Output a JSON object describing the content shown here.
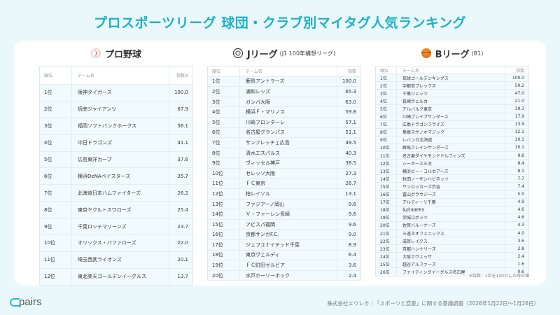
{
  "title": "プロスポーツリーグ 球団・クラブ別マイタグ人気ランキング",
  "columns": {
    "rank": "順位",
    "team": "チーム名",
    "index": "指数",
    "index_note": "指数※"
  },
  "baseball": {
    "heading": "プロ野球",
    "icon": "baseball-icon",
    "rows": [
      {
        "rank": "1位",
        "team": "阪神タイガース",
        "index": "100.0"
      },
      {
        "rank": "2位",
        "team": "読売ジャイアンツ",
        "index": "67.9"
      },
      {
        "rank": "3位",
        "team": "福岡ソフトバンクホークス",
        "index": "56.1"
      },
      {
        "rank": "4位",
        "team": "中日ドラゴンズ",
        "index": "41.1"
      },
      {
        "rank": "5位",
        "team": "広島東洋カープ",
        "index": "37.6"
      },
      {
        "rank": "6位",
        "team": "横浜DeNAベイスターズ",
        "index": "35.7"
      },
      {
        "rank": "7位",
        "team": "北海道日本ハムファイターズ",
        "index": "26.2"
      },
      {
        "rank": "8位",
        "team": "東京ヤクルトスワローズ",
        "index": "25.4"
      },
      {
        "rank": "9位",
        "team": "千葉ロッテマリーンズ",
        "index": "23.7"
      },
      {
        "rank": "10位",
        "team": "オリックス・バファローズ",
        "index": "22.0"
      },
      {
        "rank": "11位",
        "team": "埼玉西武ライオンズ",
        "index": "20.1"
      },
      {
        "rank": "12位",
        "team": "東北楽天ゴールデンイーグルス",
        "index": "13.7"
      }
    ]
  },
  "jleague": {
    "heading": "Jリーグ",
    "sub": "(J1 100年構想リーグ)",
    "icon": "soccer-ball-icon",
    "rows": [
      {
        "rank": "1位",
        "team": "鹿島アントラーズ",
        "index": "100.0"
      },
      {
        "rank": "2位",
        "team": "浦和レッズ",
        "index": "65.3"
      },
      {
        "rank": "3位",
        "team": "ガンバ大阪",
        "index": "63.0"
      },
      {
        "rank": "4位",
        "team": "横浜Ｆ・マリノス",
        "index": "59.8"
      },
      {
        "rank": "5位",
        "team": "川崎フロンターレ",
        "index": "57.1"
      },
      {
        "rank": "6位",
        "team": "名古屋グランパス",
        "index": "51.1"
      },
      {
        "rank": "7位",
        "team": "サンフレッチェ広島",
        "index": "49.5"
      },
      {
        "rank": "8位",
        "team": "清水エスパルス",
        "index": "40.3"
      },
      {
        "rank": "9位",
        "team": "ヴィッセル神戸",
        "index": "38.5"
      },
      {
        "rank": "10位",
        "team": "セレッソ大阪",
        "index": "27.3"
      },
      {
        "rank": "11位",
        "team": "ＦＣ東京",
        "index": "26.7"
      },
      {
        "rank": "12位",
        "team": "柏レイソル",
        "index": "13.1"
      },
      {
        "rank": "13位",
        "team": "ファジアーノ岡山",
        "index": "9.6"
      },
      {
        "rank": "14位",
        "team": "Ｖ・ファーレン長崎",
        "index": "9.6"
      },
      {
        "rank": "15位",
        "team": "アビスパ福岡",
        "index": "9.6"
      },
      {
        "rank": "16位",
        "team": "京都サンガF.C.",
        "index": "9.0"
      },
      {
        "rank": "17位",
        "team": "ジェフユナイテッド千葉",
        "index": "8.9"
      },
      {
        "rank": "18位",
        "team": "東京ヴェルディ",
        "index": "6.4"
      },
      {
        "rank": "19位",
        "team": "ＦＣ町田ゼルビア",
        "index": "3.6"
      },
      {
        "rank": "20位",
        "team": "水戸ホーリーホック",
        "index": "2.4"
      }
    ]
  },
  "bleague": {
    "heading": "Bリーグ",
    "sub": "(B1)",
    "icon": "basketball-icon",
    "rows": [
      {
        "rank": "1位",
        "team": "琉球ゴールデンキングス",
        "index": "100.0"
      },
      {
        "rank": "2位",
        "team": "宇都宮ブレックス",
        "index": "50.2"
      },
      {
        "rank": "3位",
        "team": "千葉ジェッツ",
        "index": "47.0"
      },
      {
        "rank": "4位",
        "team": "長崎ヴェルカ",
        "index": "21.0"
      },
      {
        "rank": "5位",
        "team": "アルバルク東京",
        "index": "19.3"
      },
      {
        "rank": "6位",
        "team": "川崎ブレイブサンダース",
        "index": "17.9"
      },
      {
        "rank": "7位",
        "team": "広島ドラゴンフライズ",
        "index": "13.9"
      },
      {
        "rank": "8位",
        "team": "島根スサノオマジック",
        "index": "12.1"
      },
      {
        "rank": "9位",
        "team": "レバンガ北海道",
        "index": "10.1"
      },
      {
        "rank": "10位",
        "team": "群馬クレインサンダーズ",
        "index": "10.1"
      },
      {
        "rank": "11位",
        "team": "名古屋ダイヤモンドドルフィンズ",
        "index": "9.6"
      },
      {
        "rank": "12位",
        "team": "シーホース三河",
        "index": "8.4"
      },
      {
        "rank": "13位",
        "team": "横浜ビー・コルセアーズ",
        "index": "8.1"
      },
      {
        "rank": "14位",
        "team": "秋田ノーザンハピネッツ",
        "index": "7.7"
      },
      {
        "rank": "15位",
        "team": "サンロッカーズ渋谷",
        "index": "7.4"
      },
      {
        "rank": "16位",
        "team": "富山グラウジーズ",
        "index": "5.5"
      },
      {
        "rank": "17位",
        "team": "アルティーリ千葉",
        "index": "4.9"
      },
      {
        "rank": "18位",
        "team": "仙台89ERS",
        "index": "4.6"
      },
      {
        "rank": "19位",
        "team": "茨城ロボッツ",
        "index": "4.6"
      },
      {
        "rank": "20位",
        "team": "佐賀バルーナーズ",
        "index": "4.3"
      },
      {
        "rank": "21位",
        "team": "三遠ネオフェニックス",
        "index": "4.0"
      },
      {
        "rank": "22位",
        "team": "滋賀レイクス",
        "index": "3.6"
      },
      {
        "rank": "23位",
        "team": "京都ハンナリーズ",
        "index": "2.8"
      },
      {
        "rank": "24位",
        "team": "大阪エヴェッサ",
        "index": "2.4"
      },
      {
        "rank": "25位",
        "team": "越谷アルファーズ",
        "index": "1.6"
      },
      {
        "rank": "26位",
        "team": "ファイティングイーグルス名古屋",
        "index": "0.6"
      }
    ]
  },
  "note": "※指数：1位を100とした時の値",
  "logo": "pairs",
  "footer": "株式会社エウレカ｜「スポーツと恋愛」に関する意識調査（2026年1月22日〜1月26日）",
  "colors": {
    "accent": "#1db1c8",
    "background": "#eaf8fb",
    "row": "#f1fafc"
  }
}
